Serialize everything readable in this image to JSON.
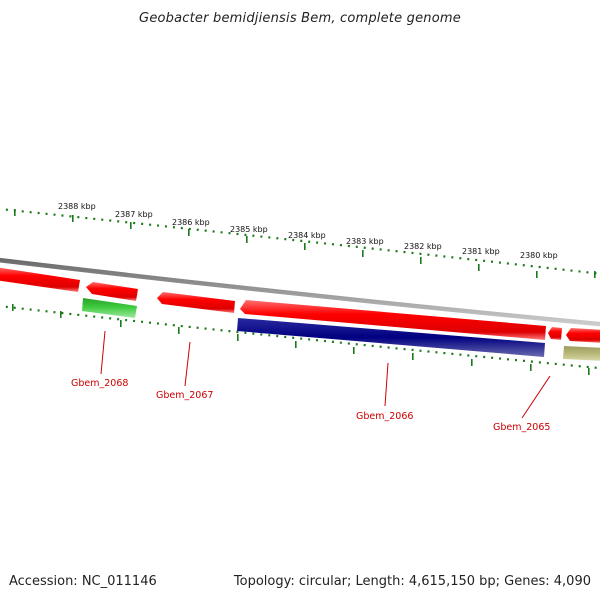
{
  "title": "Geobacter bemidjiensis Bem, complete genome",
  "footer": {
    "accession": "Accession: NC_011146",
    "summary": "Topology: circular; Length: 4,615,150 bp; Genes: 4,090"
  },
  "scale": {
    "unit": "kbp",
    "labels": [
      "2388 kbp",
      "2387 kbp",
      "2386 kbp",
      "2385 kbp",
      "2384 kbp",
      "2383 kbp",
      "2382 kbp",
      "2381 kbp",
      "2380 kbp"
    ]
  },
  "genes": [
    {
      "name": "Gbem_2068",
      "strand": "+",
      "color": "#3ecb3e"
    },
    {
      "name": "Gbem_2067",
      "strand": "+",
      "color": "#ff0000"
    },
    {
      "name": "Gbem_2066",
      "strand": "+",
      "color": "#000080"
    },
    {
      "name": "Gbem_2065",
      "strand": "+",
      "color": "#b8b87a"
    }
  ],
  "colors": {
    "backbone": "#8a8a8a",
    "cds": "#ff0000",
    "tick": "#1a7a1a",
    "label": "#cc0000"
  }
}
